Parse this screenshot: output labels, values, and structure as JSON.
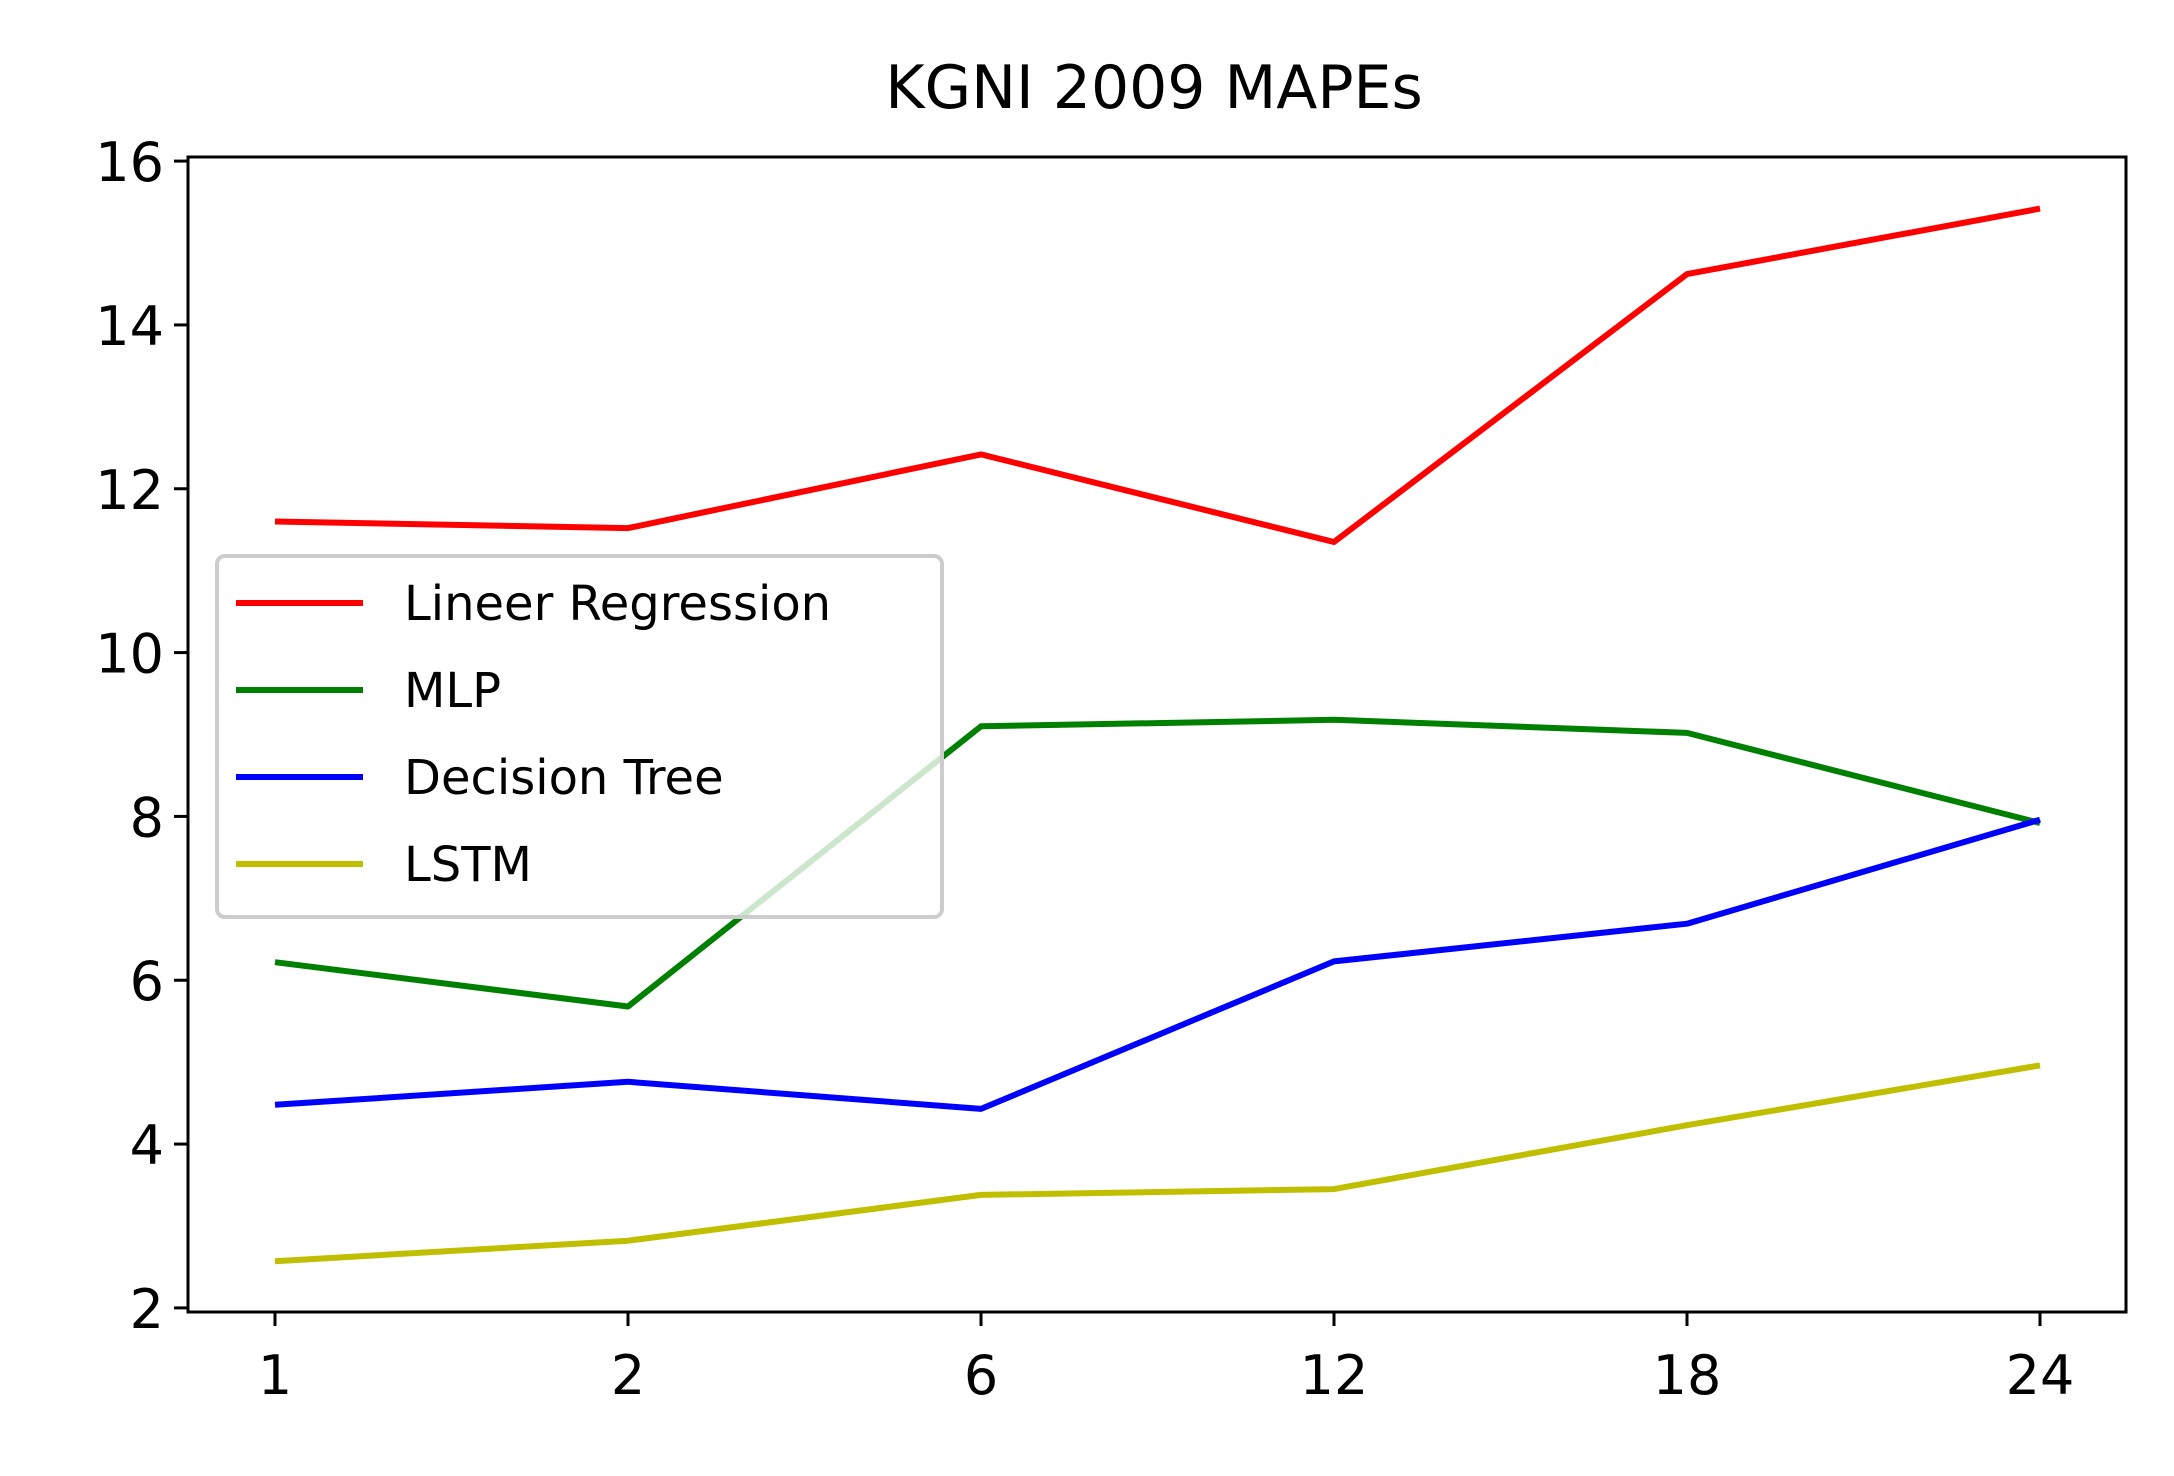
{
  "chart_data": {
    "type": "line",
    "title": "KGNI  2009 MAPEs",
    "xlabel": "",
    "ylabel": "",
    "categories": [
      "1",
      "2",
      "6",
      "12",
      "18",
      "24"
    ],
    "ylim": [
      1.95,
      16.05
    ],
    "yticks": [
      2,
      4,
      6,
      8,
      10,
      12,
      14,
      16
    ],
    "grid": false,
    "legend_position": "center-left",
    "series": [
      {
        "name": "Lineer Regression",
        "color": "#ff0000",
        "values": [
          11.6,
          11.52,
          12.42,
          11.35,
          14.62,
          15.42
        ]
      },
      {
        "name": "MLP",
        "color": "#008000",
        "values": [
          6.22,
          5.68,
          9.1,
          9.18,
          9.02,
          7.92
        ]
      },
      {
        "name": "Decision Tree",
        "color": "#0000ff",
        "values": [
          4.48,
          4.76,
          4.43,
          6.23,
          6.69,
          7.96
        ]
      },
      {
        "name": "LSTM",
        "color": "#bfbf00",
        "values": [
          2.57,
          2.82,
          3.38,
          3.45,
          4.23,
          4.96
        ]
      }
    ]
  }
}
